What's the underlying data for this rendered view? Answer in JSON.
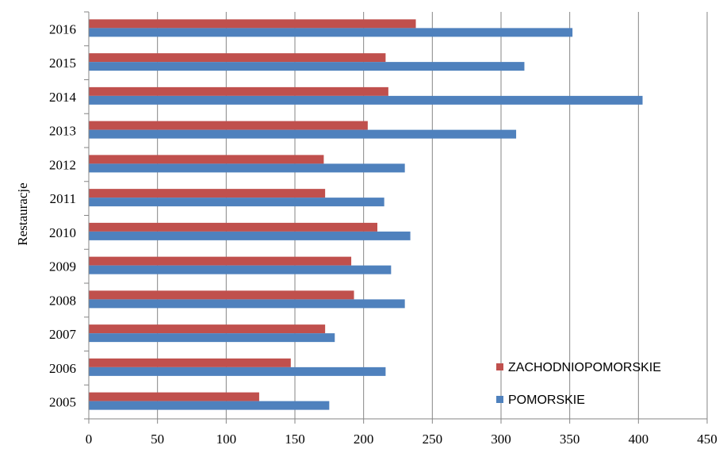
{
  "chart_data": {
    "type": "bar",
    "orientation": "horizontal",
    "ylabel": "Restauracje",
    "xlabel": "",
    "xlim": [
      0,
      450
    ],
    "x_ticks": [
      0,
      50,
      100,
      150,
      200,
      250,
      300,
      350,
      400,
      450
    ],
    "grid": true,
    "legend_position": "bottom-right",
    "categories": [
      "2005",
      "2006",
      "2007",
      "2008",
      "2009",
      "2010",
      "2011",
      "2012",
      "2013",
      "2014",
      "2015",
      "2016"
    ],
    "series": [
      {
        "name": "ZACHODNIOPOMORSKIE",
        "color": "#C0504D",
        "values": [
          124,
          147,
          172,
          193,
          191,
          210,
          172,
          171,
          203,
          218,
          216,
          238
        ]
      },
      {
        "name": "POMORSKIE",
        "color": "#4F81BD",
        "values": [
          175,
          216,
          179,
          230,
          220,
          234,
          215,
          230,
          311,
          403,
          317,
          352
        ]
      }
    ]
  }
}
